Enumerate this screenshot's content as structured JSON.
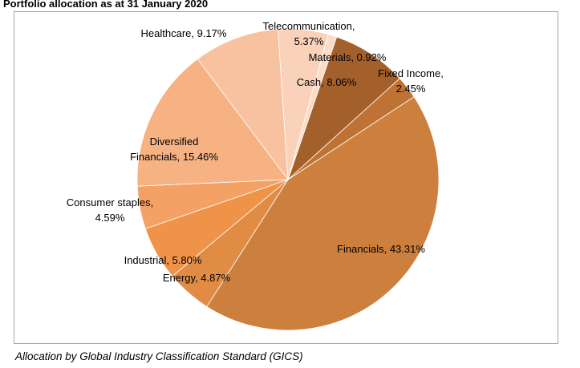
{
  "chart_data": {
    "type": "pie",
    "title": "Portfolio allocation as at 31 January 2020",
    "caption": "Allocation by Global Industry Classification Standard (GICS)",
    "slices": [
      {
        "label": "Financials, 43.31%",
        "value": 43.31,
        "color": "#cd7f3e"
      },
      {
        "label": "Energy, 4.87%",
        "value": 4.87,
        "color": "#e08c44"
      },
      {
        "label": "Industrial, 5.80%",
        "value": 5.8,
        "color": "#ef9348"
      },
      {
        "label": "Consumer staples, 4.59%",
        "value": 4.59,
        "color": "#f4a166"
      },
      {
        "label": "Diversified Financials, 15.46%",
        "value": 15.46,
        "color": "#f6b283"
      },
      {
        "label": "Healthcare, 9.17%",
        "value": 9.17,
        "color": "#f8c2a0"
      },
      {
        "label": "Telecommunication, 5.37%",
        "value": 5.37,
        "color": "#fad2b9"
      },
      {
        "label": "Materials, 0.92%",
        "value": 0.92,
        "color": "#fbdcc8"
      },
      {
        "label": "Cash, 8.06%",
        "value": 8.06,
        "color": "#a4602b"
      },
      {
        "label": "Fixed Income, 2.45%",
        "value": 2.45,
        "color": "#be7233"
      }
    ],
    "legend": "none",
    "start": "top, clockwise from Cash"
  }
}
